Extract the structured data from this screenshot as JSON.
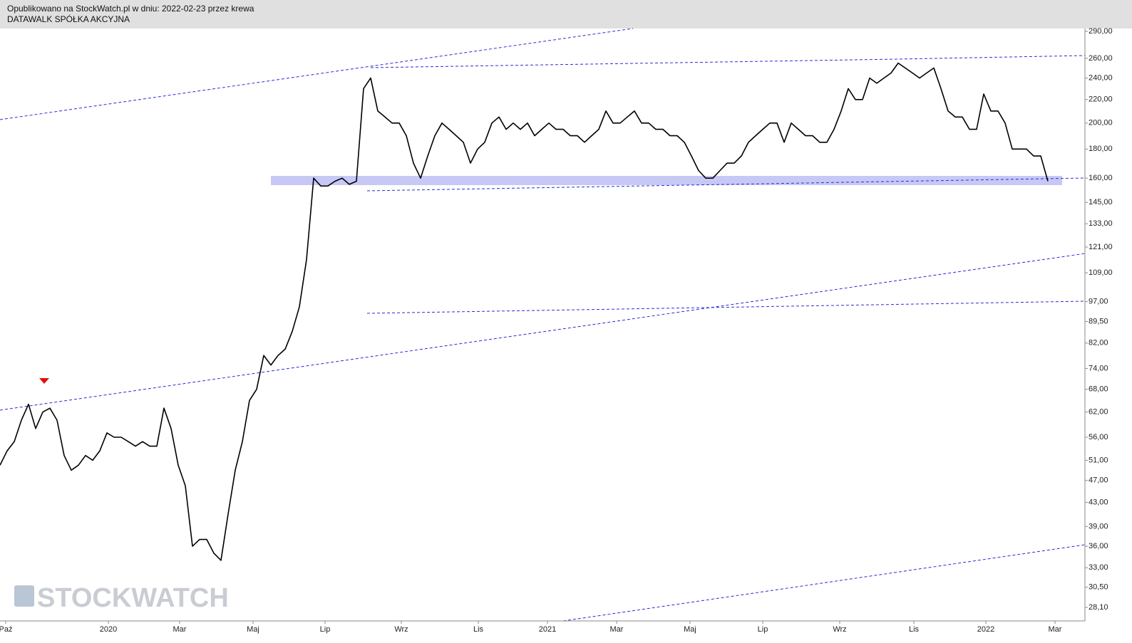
{
  "header": {
    "published": "Opublikowano na StockWatch.pl w dniu: 2022-02-23 przez krewa",
    "instrument": "DATAWALK SPÓŁKA AKCYJNA"
  },
  "watermark": "STOCKWATCH",
  "chart_data": {
    "type": "line",
    "log_y": true,
    "color": "#000000",
    "x": [
      0,
      1,
      2,
      3,
      4,
      5,
      6,
      7,
      8,
      9,
      10,
      11,
      12,
      13,
      14,
      15,
      16,
      17,
      18,
      19,
      20,
      21,
      22,
      23,
      24,
      25,
      26,
      27,
      28,
      29,
      30,
      31,
      32,
      33,
      34,
      35,
      36,
      37,
      38,
      39,
      40,
      41,
      42,
      43,
      44,
      45,
      46,
      47,
      48,
      49,
      50,
      51,
      52,
      53,
      54,
      55,
      56,
      57,
      58,
      59,
      60,
      61,
      62,
      63,
      64,
      65,
      66,
      67,
      68,
      69,
      70,
      71,
      72,
      73,
      74,
      75,
      76,
      77,
      78,
      79,
      80,
      81,
      82,
      83,
      84,
      85,
      86,
      87,
      88,
      89,
      90,
      91,
      92,
      93,
      94,
      95,
      96,
      97,
      98,
      99,
      100,
      101,
      102,
      103,
      104,
      105,
      106,
      107,
      108,
      109,
      110,
      111,
      112,
      113,
      114,
      115,
      116,
      117,
      118,
      119,
      120,
      121,
      122,
      123,
      124,
      125,
      126,
      127,
      128,
      129,
      130,
      131,
      132,
      133,
      134,
      135,
      136,
      137,
      138,
      139,
      140,
      141,
      142,
      143,
      144,
      145,
      146,
      147
    ],
    "values": [
      50,
      53,
      55,
      60,
      64,
      58,
      62,
      63,
      60,
      52,
      49,
      50,
      52,
      51,
      53,
      57,
      56,
      56,
      55,
      54,
      55,
      54,
      54,
      63,
      58,
      50,
      46,
      36,
      37,
      37,
      35,
      34,
      41,
      49,
      55,
      65,
      68,
      78,
      75,
      78,
      80,
      86,
      95,
      115,
      160,
      155,
      155,
      158,
      160,
      156,
      158,
      230,
      240,
      210,
      205,
      200,
      200,
      190,
      170,
      160,
      175,
      190,
      200,
      195,
      190,
      185,
      170,
      180,
      185,
      200,
      205,
      195,
      200,
      195,
      200,
      190,
      195,
      200,
      195,
      195,
      190,
      190,
      185,
      190,
      195,
      210,
      200,
      200,
      205,
      210,
      200,
      200,
      195,
      195,
      190,
      190,
      185,
      175,
      165,
      160,
      160,
      165,
      170,
      170,
      175,
      185,
      190,
      195,
      200,
      200,
      185,
      200,
      195,
      190,
      190,
      185,
      185,
      195,
      210,
      230,
      220,
      220,
      240,
      235,
      240,
      245,
      255,
      250,
      245,
      240,
      245,
      250,
      230,
      210,
      205,
      205,
      195,
      195,
      225,
      210,
      210,
      200,
      180,
      180,
      180,
      175,
      175,
      158
    ],
    "xlim": [
      0,
      152.2
    ],
    "xticks": [
      {
        "value": 0.8,
        "label": "Paź"
      },
      {
        "value": 15.2,
        "label": "2020"
      },
      {
        "value": 25.2,
        "label": "Mar"
      },
      {
        "value": 35.5,
        "label": "Maj"
      },
      {
        "value": 45.6,
        "label": "Lip"
      },
      {
        "value": 56.3,
        "label": "Wrz"
      },
      {
        "value": 67.1,
        "label": "Lis"
      },
      {
        "value": 76.8,
        "label": "2021"
      },
      {
        "value": 86.5,
        "label": "Mar"
      },
      {
        "value": 96.8,
        "label": "Maj"
      },
      {
        "value": 107,
        "label": "Lip"
      },
      {
        "value": 117.8,
        "label": "Wrz"
      },
      {
        "value": 128.2,
        "label": "Lis"
      },
      {
        "value": 138.3,
        "label": "2022"
      },
      {
        "value": 148,
        "label": "Mar"
      }
    ],
    "ylim": [
      26.6,
      293.4
    ],
    "yticks": [
      {
        "value": 290,
        "label": "290,00"
      },
      {
        "value": 260,
        "label": "260,00"
      },
      {
        "value": 240,
        "label": "240,00"
      },
      {
        "value": 220,
        "label": "220,00"
      },
      {
        "value": 200,
        "label": "200,00"
      },
      {
        "value": 180,
        "label": "180,00"
      },
      {
        "value": 160,
        "label": "160,00"
      },
      {
        "value": 145,
        "label": "145,00"
      },
      {
        "value": 133,
        "label": "133,00"
      },
      {
        "value": 121,
        "label": "121,00"
      },
      {
        "value": 109,
        "label": "109,00"
      },
      {
        "value": 97,
        "label": "97,00"
      },
      {
        "value": 89.5,
        "label": "89,50"
      },
      {
        "value": 82,
        "label": "82,00"
      },
      {
        "value": 74,
        "label": "74,00"
      },
      {
        "value": 68,
        "label": "68,00"
      },
      {
        "value": 62,
        "label": "62,00"
      },
      {
        "value": 56,
        "label": "56,00"
      },
      {
        "value": 51,
        "label": "51,00"
      },
      {
        "value": 47,
        "label": "47,00"
      },
      {
        "value": 43,
        "label": "43,00"
      },
      {
        "value": 39,
        "label": "39,00"
      },
      {
        "value": 36,
        "label": "36,00"
      },
      {
        "value": 33,
        "label": "33,00"
      },
      {
        "value": 30.5,
        "label": "30,50"
      },
      {
        "value": 28.1,
        "label": "28,10"
      }
    ]
  }
}
